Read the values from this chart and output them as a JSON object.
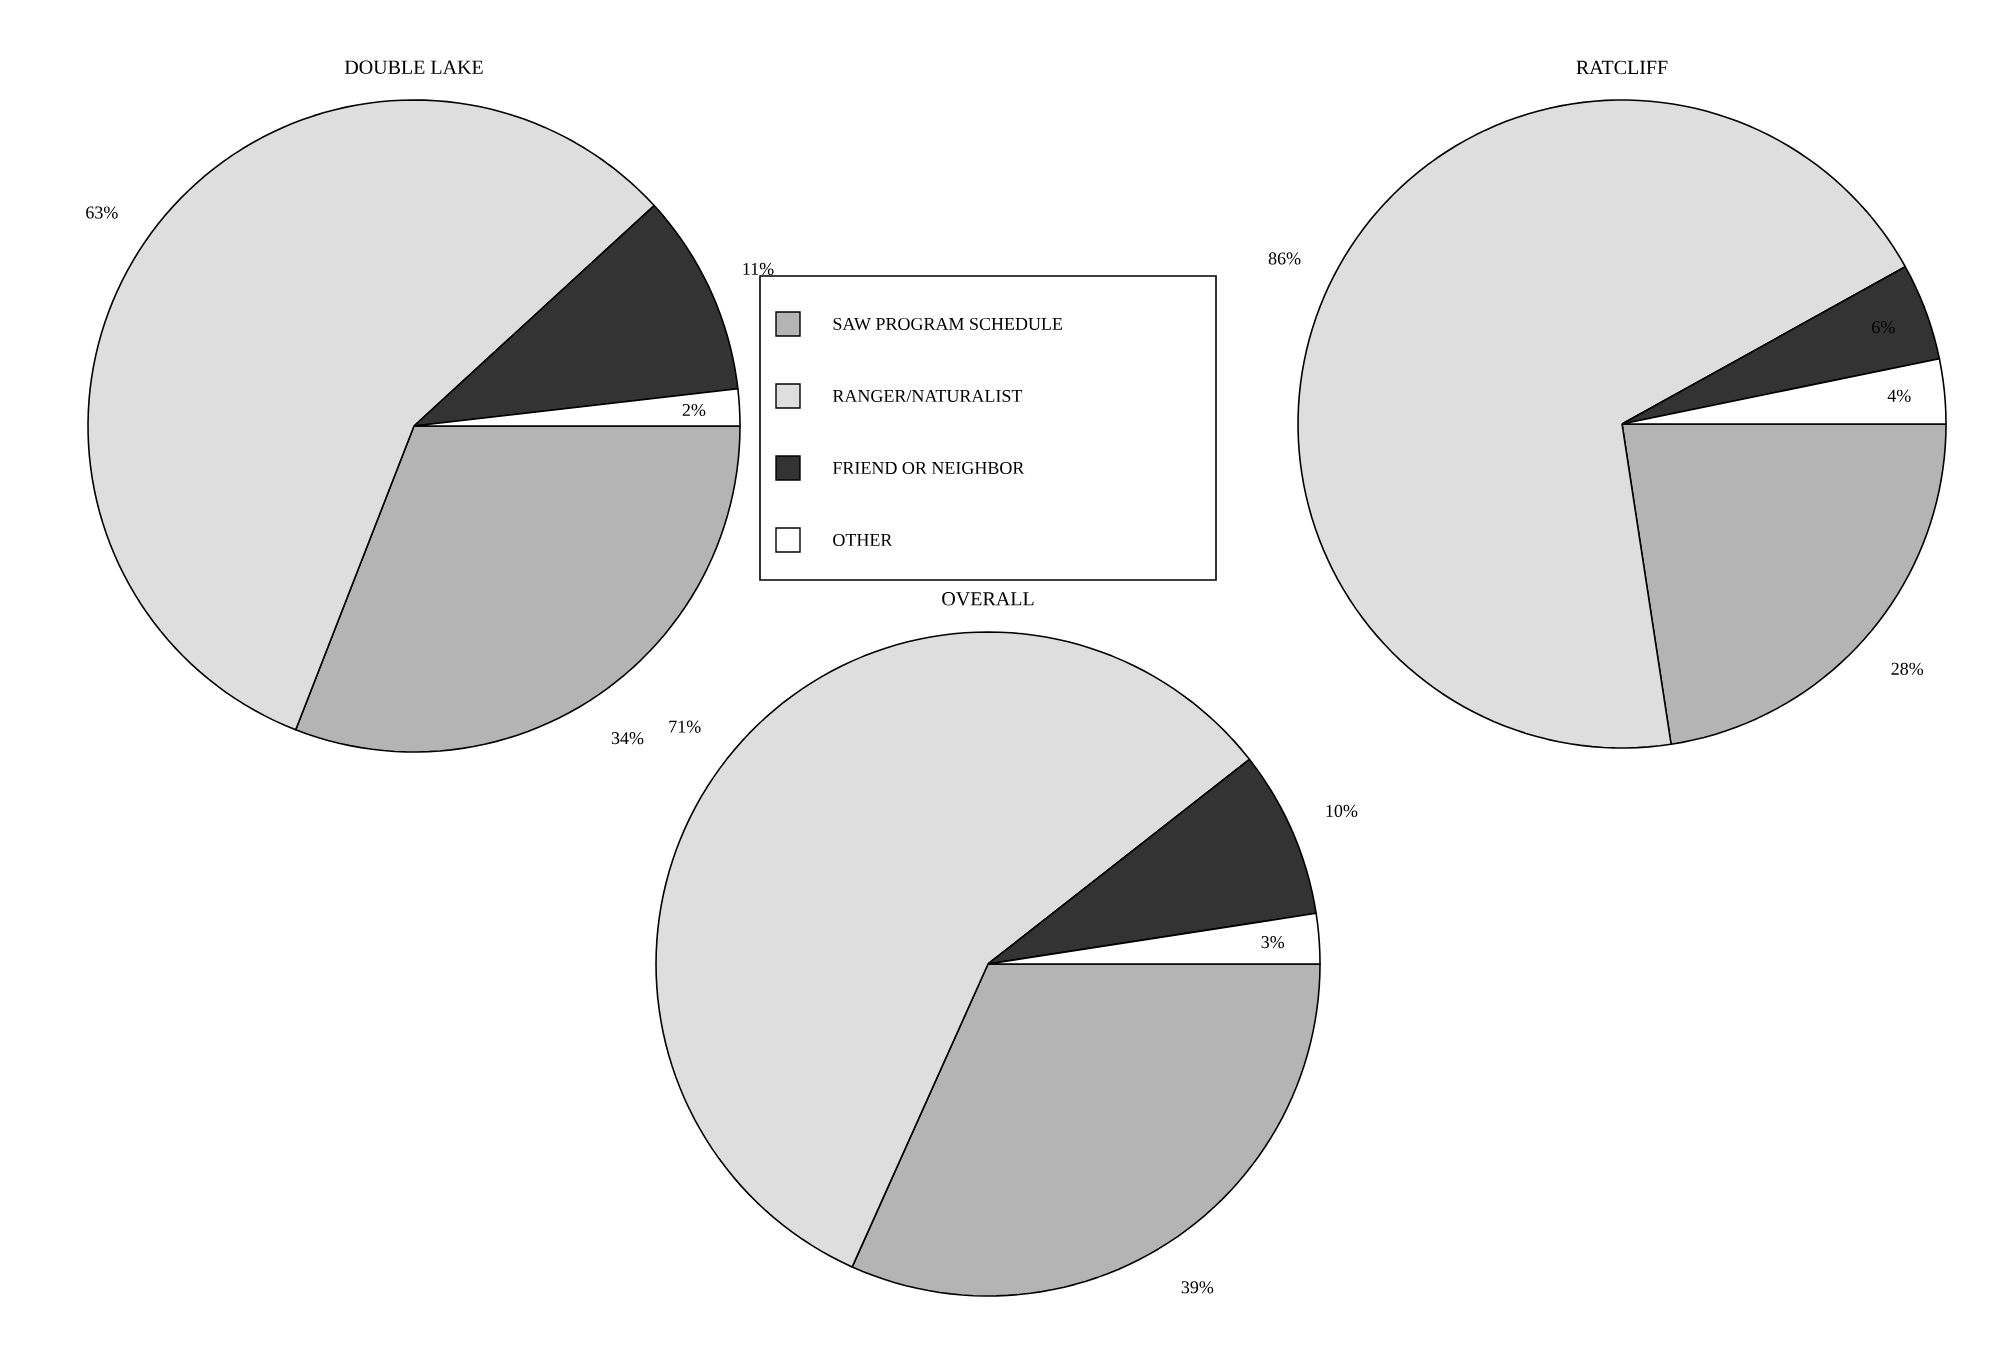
{
  "chart_data": [
    {
      "type": "pie",
      "title": "DOUBLE LAKE",
      "categories": [
        "SAW PROGRAM SCHEDULE",
        "RANGER/NATURALIST",
        "FRIEND OR NEIGHBOR",
        "OTHER"
      ],
      "values": [
        34,
        63,
        11,
        2
      ],
      "value_labels": [
        "34%",
        "63%",
        "11%",
        "2%"
      ],
      "colors": [
        "#b4b4b4",
        "#dedede",
        "#333333",
        "#ffffff"
      ],
      "legend": "right"
    },
    {
      "type": "pie",
      "title": "RATCLIFF",
      "categories": [
        null,
        null,
        null,
        null
      ],
      "values": [
        28,
        86,
        6,
        4
      ],
      "value_labels": [
        "28%",
        "86%",
        "6%",
        "4%"
      ],
      "colors": [
        "#b4b4b4",
        "#dedede",
        "#333333",
        "#ffffff"
      ]
    },
    {
      "type": "pie",
      "title": "OVERALL",
      "categories": [
        null,
        null,
        null,
        null
      ],
      "values": [
        39,
        71,
        10,
        3
      ],
      "value_labels": [
        "39%",
        "71%",
        "10%",
        "3%"
      ],
      "colors": [
        "#b4b4b4",
        "#dedede",
        "#333333",
        "#ffffff"
      ]
    }
  ]
}
